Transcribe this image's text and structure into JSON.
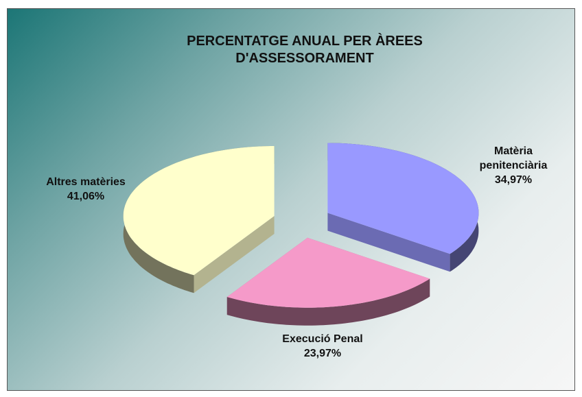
{
  "chart_data": {
    "type": "pie3d",
    "title": "PERCENTATGE ANUAL PER ÀREES D'ASSESSORAMENT",
    "categories": [
      "Matèria penitenciària",
      "Execució Penal",
      "Altres matèries"
    ],
    "values": [
      34.97,
      23.97,
      41.06
    ],
    "value_labels": [
      "34,97%",
      "23,97%",
      "41,06%"
    ],
    "colors": [
      "#9999ff",
      "#f59ac9",
      "#ffffcc"
    ]
  }
}
